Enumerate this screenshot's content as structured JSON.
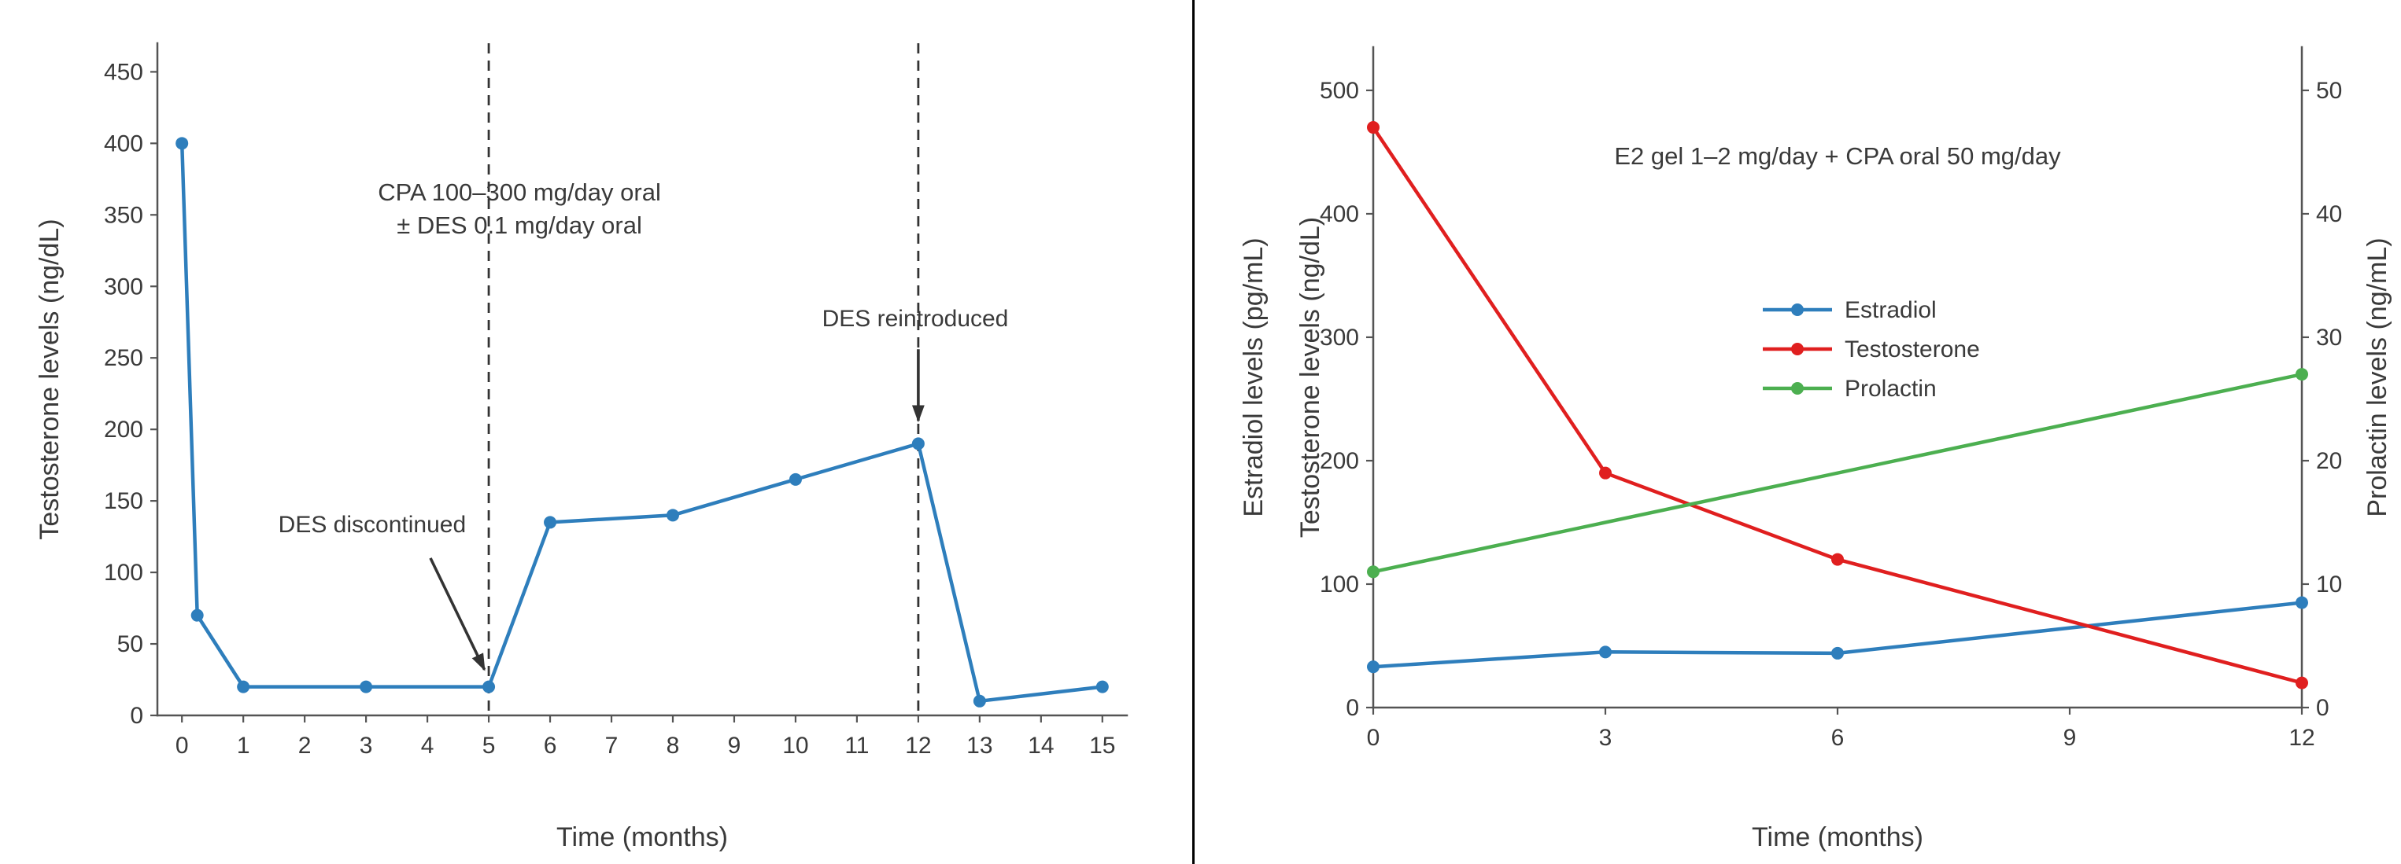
{
  "colors": {
    "text": "#3a3a3a",
    "spine": "#545454",
    "annotation": "#333333",
    "blue": "#2e7ebc",
    "red": "#e01f1f",
    "green": "#4caf50",
    "divider": "#000000",
    "background": "#ffffff"
  },
  "chart_data": [
    {
      "type": "line",
      "id": "left",
      "xlabel": "Time (months)",
      "ylabel": "Testosterone levels (ng/dL)",
      "xlim": [
        -0.4,
        15.4
      ],
      "ylim": [
        0,
        470
      ],
      "xticks": [
        0,
        1,
        2,
        3,
        4,
        5,
        6,
        7,
        8,
        9,
        10,
        11,
        12,
        13,
        14,
        15
      ],
      "yticks": [
        0,
        50,
        100,
        150,
        200,
        250,
        300,
        350,
        400,
        450
      ],
      "grid": false,
      "annotation_title": {
        "text": "CPA 100–300 mg/day oral\n± DES 0.1 mg/day oral",
        "x": 5.5,
        "y": 360
      },
      "vlines": [
        {
          "x": 5,
          "label": "DES discontinued"
        },
        {
          "x": 12,
          "label": "DES reintroduced"
        }
      ],
      "arrow_annotations": [
        {
          "text": "DES discontinued",
          "text_x": 3.1,
          "text_y": 128,
          "arrow_from_x": 4.05,
          "arrow_from_y": 110,
          "arrow_to_x": 4.93,
          "arrow_to_y": 32
        },
        {
          "text": "DES reintroduced",
          "text_x": 11.95,
          "text_y": 272,
          "arrow_from_x": 12,
          "arrow_from_y": 256,
          "arrow_to_x": 12,
          "arrow_to_y": 206
        }
      ],
      "series": [
        {
          "name": "Testosterone",
          "color": "#2e7ebc",
          "axis": "left",
          "x": [
            0,
            0.25,
            1,
            3,
            5,
            6,
            8,
            10,
            12,
            13,
            15
          ],
          "y": [
            400,
            70,
            20,
            20,
            20,
            135,
            140,
            165,
            190,
            10,
            20
          ]
        }
      ]
    },
    {
      "type": "line",
      "id": "right",
      "title": "E2 gel 1–2 mg/day + CPA oral 50 mg/day",
      "title_x": 6,
      "title_y": 440,
      "xlabel": "Time (months)",
      "ylabel_left_outer": "Estradiol levels (pg/mL)",
      "ylabel_left_inner": "Testosterone levels (ng/dL)",
      "ylabel_right": "Prolactin levels (ng/mL)",
      "xlim": [
        0,
        12
      ],
      "ylim_left": [
        0,
        535
      ],
      "ylim_right": [
        0,
        53.5
      ],
      "xticks": [
        0,
        3,
        6,
        9,
        12
      ],
      "yticks_left": [
        0,
        100,
        200,
        300,
        400,
        500
      ],
      "yticks_right": [
        0,
        10,
        20,
        30,
        40,
        50
      ],
      "grid": false,
      "legend": {
        "entries": [
          "Estradiol",
          "Testosterone",
          "Prolactin"
        ],
        "position": "upper-center-left-inside"
      },
      "series": [
        {
          "name": "Estradiol",
          "color": "#2e7ebc",
          "axis": "left",
          "x": [
            0,
            3,
            6,
            12
          ],
          "y": [
            33,
            45,
            44,
            85
          ]
        },
        {
          "name": "Testosterone",
          "color": "#e01f1f",
          "axis": "left",
          "x": [
            0,
            3,
            6,
            12
          ],
          "y": [
            470,
            190,
            120,
            20
          ]
        },
        {
          "name": "Prolactin",
          "color": "#4caf50",
          "axis": "right",
          "x": [
            0,
            12
          ],
          "y": [
            11,
            27
          ]
        }
      ]
    }
  ]
}
